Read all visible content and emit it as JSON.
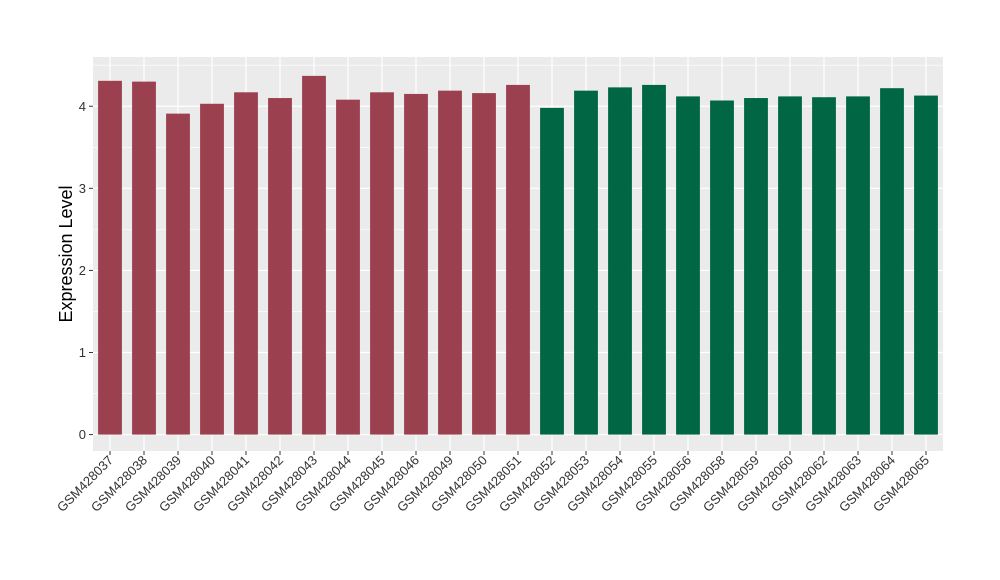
{
  "chart_data": {
    "type": "bar",
    "ylabel": "Expression Level",
    "xlabel": "",
    "ylim": [
      -0.2,
      4.6
    ],
    "y_ticks": [
      0,
      1,
      2,
      3,
      4
    ],
    "y_tick_labels": [
      "0",
      "1",
      "2",
      "3",
      "4"
    ],
    "grid": true,
    "legend": "none",
    "colors": {
      "group_1": "#9b404e",
      "group_2": "#006644",
      "panel_bg": "#ebebeb",
      "grid": "#ffffff"
    },
    "categories": [
      "GSM428037",
      "GSM428038",
      "GSM428039",
      "GSM428040",
      "GSM428041",
      "GSM428042",
      "GSM428043",
      "GSM428044",
      "GSM428045",
      "GSM428046",
      "GSM428049",
      "GSM428050",
      "GSM428051",
      "GSM428052",
      "GSM428053",
      "GSM428054",
      "GSM428055",
      "GSM428056",
      "GSM428058",
      "GSM428059",
      "GSM428060",
      "GSM428062",
      "GSM428063",
      "GSM428064",
      "GSM428065"
    ],
    "values": [
      4.31,
      4.3,
      3.91,
      4.03,
      4.17,
      4.1,
      4.37,
      4.08,
      4.17,
      4.15,
      4.19,
      4.16,
      4.26,
      3.98,
      4.19,
      4.23,
      4.26,
      4.12,
      4.07,
      4.1,
      4.12,
      4.11,
      4.12,
      4.22,
      4.13
    ],
    "groups": [
      1,
      1,
      1,
      1,
      1,
      1,
      1,
      1,
      1,
      1,
      1,
      1,
      1,
      2,
      2,
      2,
      2,
      2,
      2,
      2,
      2,
      2,
      2,
      2,
      2
    ]
  }
}
